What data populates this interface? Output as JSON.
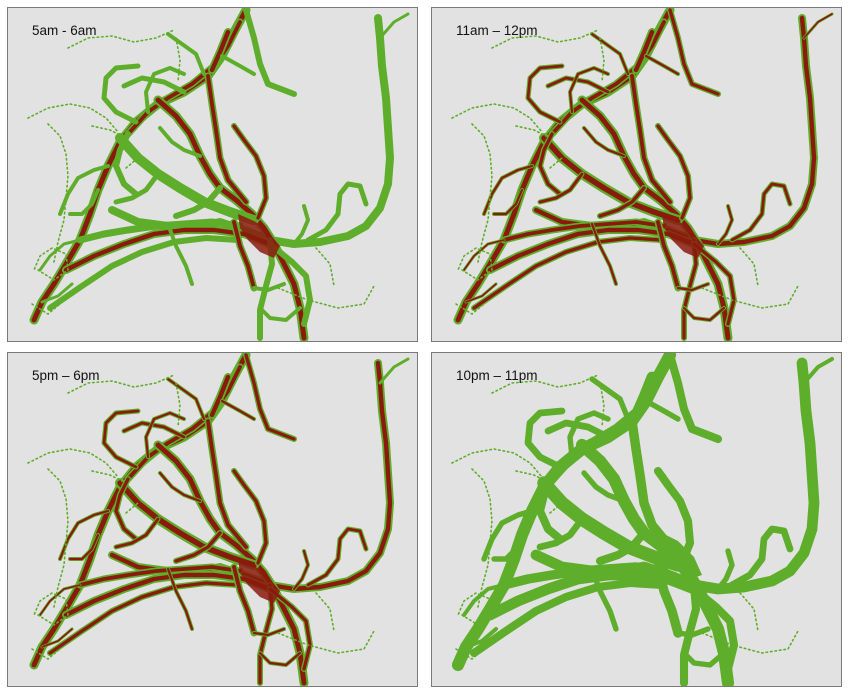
{
  "colors": {
    "background": "#e2e2e2",
    "uncongested": "#5fae2b",
    "congested": "#8b1a0e"
  },
  "panels": [
    {
      "label": "5am - 6am",
      "level": 0.35
    },
    {
      "label": "11am – 12pm",
      "level": 0.9
    },
    {
      "label": "5pm – 6pm",
      "level": 0.8
    },
    {
      "label": "10pm – 11pm",
      "level": 0.12
    }
  ]
}
